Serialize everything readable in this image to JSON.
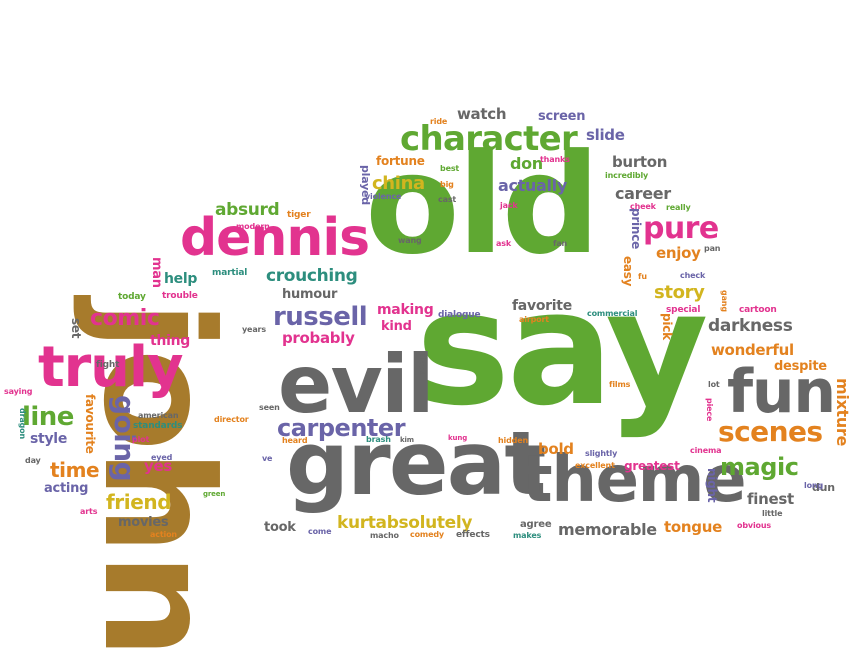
{
  "palette": {
    "green": "#5fa832",
    "gray": "#676767",
    "brown": "#a77b2c",
    "pink": "#e2338f",
    "orange": "#e3821f",
    "purple": "#6a64a8",
    "yellow": "#d2b51f",
    "teal": "#2d8e7e"
  },
  "words": [
    "old",
    "say",
    "john",
    "evil",
    "great",
    "theme",
    "fun",
    "dennis",
    "truly",
    "character",
    "scenes",
    "magic",
    "pure",
    "russell",
    "carpenter",
    "going",
    "kurtabsolutely",
    "memorable",
    "line",
    "comic",
    "china",
    "story",
    "crouching",
    "darkness",
    "friend",
    "time",
    "absurd",
    "wonderful",
    "actually",
    "burton",
    "career",
    "watch",
    "screen",
    "slide",
    "don",
    "enjoy",
    "making",
    "probably",
    "favorite",
    "humour",
    "help",
    "kind",
    "bold",
    "despite",
    "mixture",
    "finest",
    "tongue",
    "yes",
    "style",
    "acting",
    "movies",
    "thing",
    "set",
    "favourite",
    "fortune",
    "dun",
    "man",
    "prince",
    "easy",
    "pick",
    "greatest",
    "night",
    "agree",
    "took",
    "played",
    "martial",
    "today",
    "trouble",
    "fight",
    "best",
    "big",
    "violence",
    "cast",
    "jack",
    "ask",
    "wang",
    "fan",
    "modern",
    "tiger",
    "ride",
    "thanks",
    "incredibly",
    "cheek",
    "really",
    "pan",
    "check",
    "fu",
    "gang",
    "special",
    "cartoon",
    "commercial",
    "airport",
    "dialogue",
    "years",
    "plays",
    "american",
    "standards",
    "plot",
    "eyed",
    "director",
    "seen",
    "heard",
    "brash",
    "kim",
    "kung",
    "hidden",
    "slightly",
    "excellent",
    "cinema",
    "films",
    "lot",
    "piece",
    "long",
    "little",
    "obvious",
    "saying",
    "dragon",
    "day",
    "arts",
    "action",
    "come",
    "macho",
    "comedy",
    "effects",
    "makes",
    "green",
    "ve"
  ]
}
